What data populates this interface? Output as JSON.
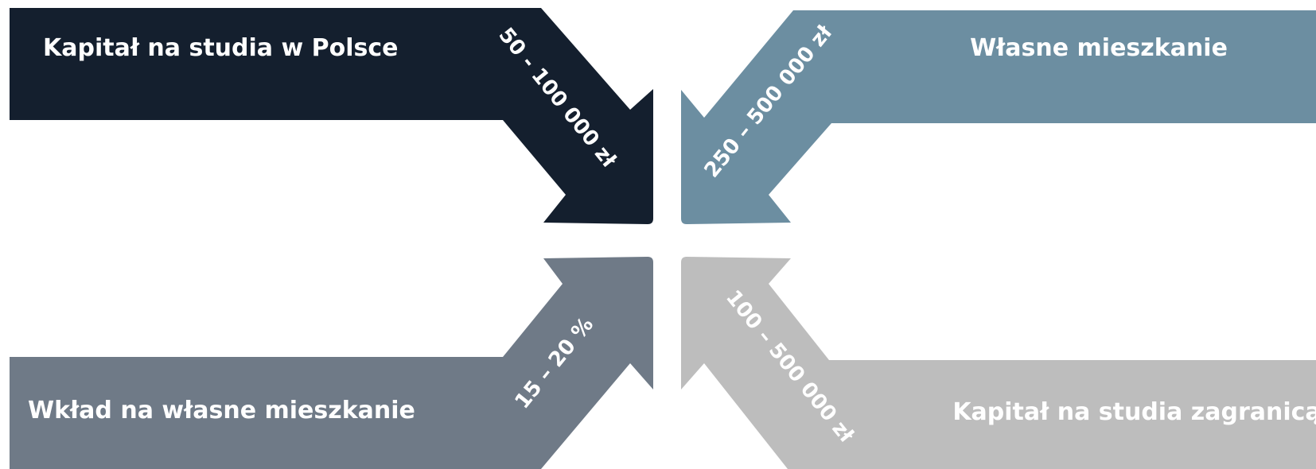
{
  "colors": {
    "background": "#ffffff",
    "top_left": "#141f2e",
    "top_right": "#6c8ea1",
    "bottom_left": "#6f7a87",
    "bottom_right": "#bdbdbd",
    "text": "#ffffff"
  },
  "arrows": {
    "top_left": {
      "title": "Kapitał na studia w Polsce",
      "value": "50 - 100 000 zł"
    },
    "top_right": {
      "title": "Własne mieszkanie",
      "value": "250 – 500 000 zł"
    },
    "bottom_left": {
      "title": "Wkład na własne mieszkanie",
      "value": "15 – 20 %"
    },
    "bottom_right": {
      "title": "Kapitał na studia zagranicą",
      "value": "100 – 500 000 zł"
    }
  }
}
